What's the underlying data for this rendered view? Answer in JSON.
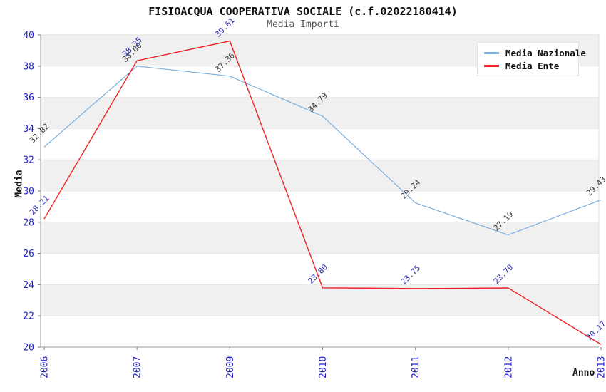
{
  "title": "FISIOACQUA COOPERATIVA SOCIALE (c.f.02022180414)",
  "subtitle": "Media Importi",
  "axis": {
    "x_label": "Anno",
    "y_label": "Media"
  },
  "colors": {
    "tick_label": "#2222cc",
    "nazionale_line": "#7aaede",
    "ente_line": "#ee2222",
    "nazionale_value_label": "#3a3a3a",
    "ente_value_label": "#2b2bb4",
    "band_gray": "#f0f0f0",
    "band_white": "#ffffff"
  },
  "chart_data": {
    "type": "line",
    "title": "FISIOACQUA COOPERATIVA SOCIALE (c.f.02022180414)",
    "subtitle": "Media Importi",
    "xlabel": "Anno",
    "ylabel": "Media",
    "categories": [
      "2006",
      "2007",
      "2009",
      "2010",
      "2011",
      "2012",
      "2013"
    ],
    "series": [
      {
        "name": "Media Nazionale",
        "color": "#7aaede",
        "label_color": "#3a3a3a",
        "values": [
          32.82,
          38.0,
          37.36,
          34.79,
          29.24,
          27.19,
          29.43
        ]
      },
      {
        "name": "Media Ente",
        "color": "#ee2222",
        "label_color": "#2b2bb4",
        "values": [
          28.21,
          38.35,
          39.61,
          23.8,
          23.75,
          23.79,
          20.17
        ]
      }
    ],
    "ylim": [
      20,
      40
    ],
    "y_ticks": [
      20,
      22,
      24,
      26,
      28,
      30,
      32,
      34,
      36,
      38,
      40
    ],
    "grid": "alternating-horizontal-bands",
    "legend_position": "top-right"
  }
}
